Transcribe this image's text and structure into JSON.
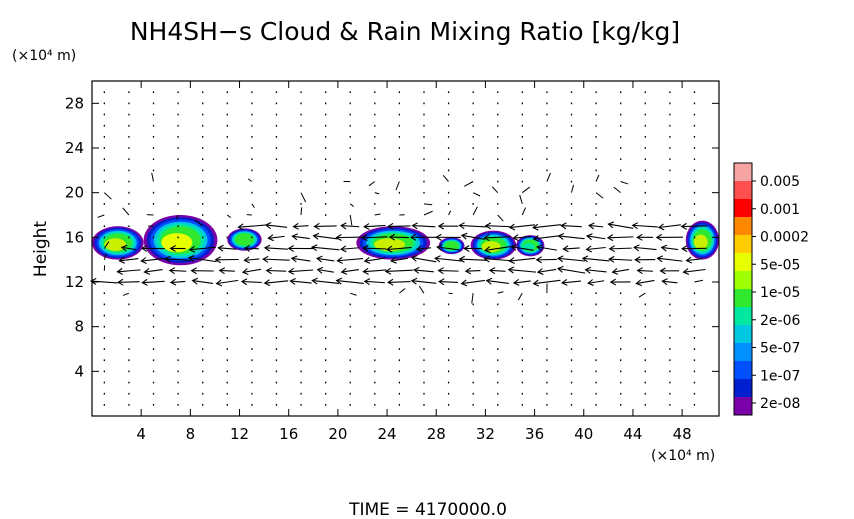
{
  "chart_data": {
    "type": "heatmap",
    "title": "NH4SH−s Cloud & Rain Mixing Ratio [kg/kg]",
    "ylabel": "Height",
    "y_unit_label": "(×10⁴ m)",
    "x_unit_label": "(×10⁴ m)",
    "footer": "TIME  =  4170000.0",
    "xlim": [
      0,
      51
    ],
    "ylim": [
      0,
      30
    ],
    "x_ticks": [
      4,
      8,
      12,
      16,
      20,
      24,
      28,
      32,
      36,
      40,
      44,
      48
    ],
    "x_tick_labels": [
      "4",
      "8",
      "12",
      "16",
      "20",
      "24",
      "28",
      "32",
      "36",
      "40",
      "44",
      "48"
    ],
    "y_ticks": [
      4,
      8,
      12,
      16,
      20,
      24,
      28
    ],
    "y_tick_labels": [
      "4",
      "8",
      "12",
      "16",
      "20",
      "24",
      "28"
    ],
    "colorbar": {
      "labels": [
        "0.005",
        "0.001",
        "0.0002",
        "5e-05",
        "1e-05",
        "2e-06",
        "5e-07",
        "1e-07",
        "2e-08"
      ],
      "colors": [
        "#f5a3a3",
        "#ff5050",
        "#ff0000",
        "#ff8800",
        "#ffcc00",
        "#e8ff00",
        "#a0ff00",
        "#30e830",
        "#00e8a0",
        "#00c8e0",
        "#0090ff",
        "#0050ff",
        "#0020d0",
        "#7a00a8"
      ]
    },
    "clouds": [
      {
        "x": [
          0,
          4.2
        ],
        "y": [
          14,
          17
        ],
        "core": "#c8f000"
      },
      {
        "x": [
          4.2,
          10.2
        ],
        "y": [
          13.5,
          18
        ],
        "core": "#e8ff00"
      },
      {
        "x": [
          11,
          13.8
        ],
        "y": [
          14.8,
          16.8
        ],
        "core": "#30e830"
      },
      {
        "x": [
          21.5,
          27.5
        ],
        "y": [
          14,
          17
        ],
        "core": "#c8f000"
      },
      {
        "x": [
          28.2,
          30.3
        ],
        "y": [
          14.5,
          16
        ],
        "core": "#30e830"
      },
      {
        "x": [
          30.8,
          34.5
        ],
        "y": [
          14,
          16.6
        ],
        "core": "#c8f000"
      },
      {
        "x": [
          34.5,
          36.8
        ],
        "y": [
          14.3,
          16.2
        ],
        "core": "#00e8a0"
      },
      {
        "x": [
          48.3,
          51
        ],
        "y": [
          14,
          17.5
        ],
        "core": "#c8f000"
      }
    ],
    "wind_jets": [
      {
        "y": 18.5,
        "x": [
          2,
          13
        ],
        "direction": "west"
      },
      {
        "y": 17,
        "x": [
          12,
          50
        ],
        "direction": "west"
      },
      {
        "y": 16,
        "x": [
          14,
          48
        ],
        "direction": "west"
      },
      {
        "y": 15,
        "x": [
          3,
          50
        ],
        "direction": "west"
      },
      {
        "y": 14,
        "x": [
          2,
          50
        ],
        "direction": "west"
      },
      {
        "y": 13,
        "x": [
          3,
          49
        ],
        "direction": "west"
      },
      {
        "y": 12,
        "x": [
          0,
          47
        ],
        "direction": "west"
      }
    ]
  }
}
